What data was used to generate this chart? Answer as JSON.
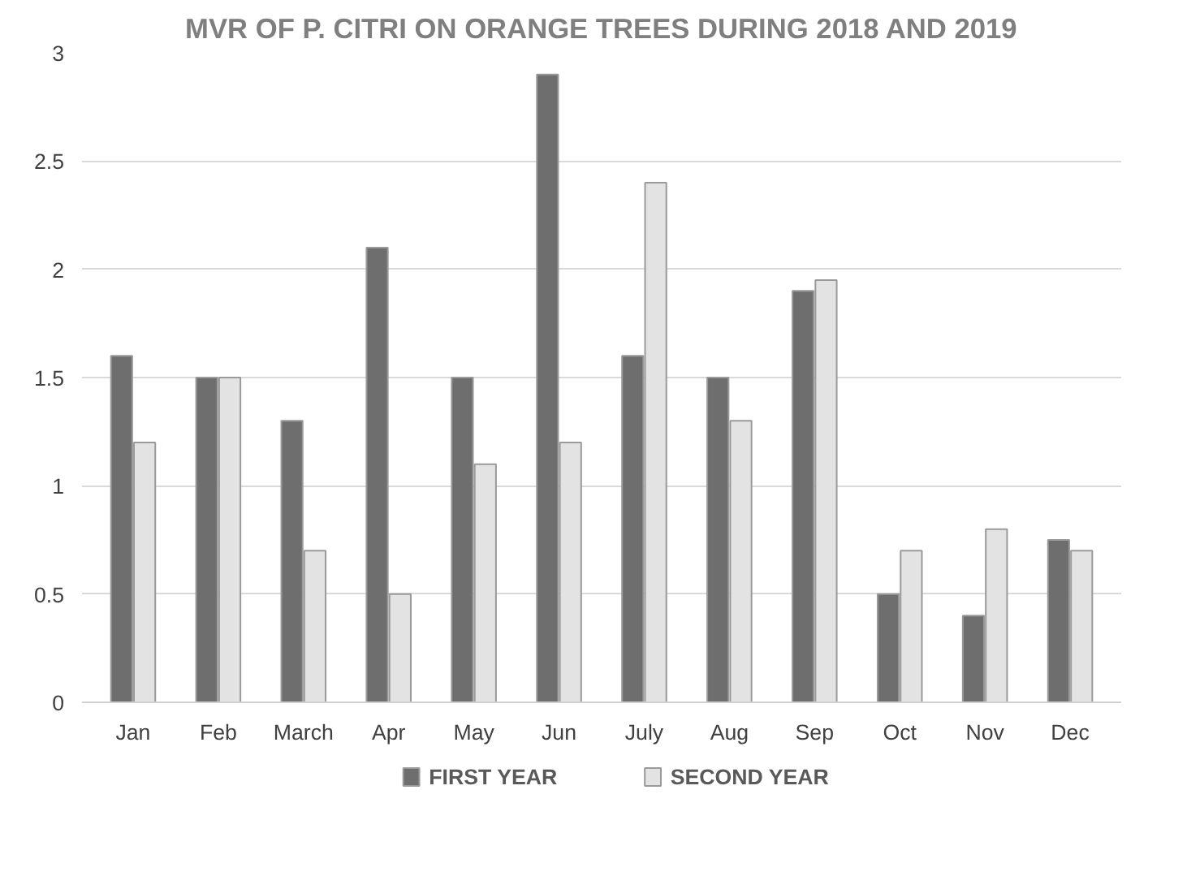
{
  "chart_data": {
    "type": "bar",
    "title": "MVR OF P. CITRI ON ORANGE TREES DURING 2018 AND 2019",
    "categories": [
      "Jan",
      "Feb",
      "March",
      "Apr",
      "May",
      "Jun",
      "July",
      "Aug",
      "Sep",
      "Oct",
      "Nov",
      "Dec"
    ],
    "series": [
      {
        "name": "FIRST YEAR",
        "color": "#6e6e6e",
        "values": [
          1.6,
          1.5,
          1.3,
          2.1,
          1.5,
          2.9,
          1.6,
          1.5,
          1.9,
          0.5,
          0.4,
          0.75
        ]
      },
      {
        "name": "SECOND YEAR",
        "color": "#e3e3e3",
        "values": [
          1.2,
          1.5,
          0.7,
          0.5,
          1.1,
          1.2,
          2.4,
          1.3,
          1.95,
          0.7,
          0.8,
          0.7
        ]
      }
    ],
    "ylim": [
      0,
      3
    ],
    "yticks": [
      0,
      0.5,
      1,
      1.5,
      2,
      2.5,
      3
    ],
    "grid": "y",
    "legend": "bottom"
  }
}
